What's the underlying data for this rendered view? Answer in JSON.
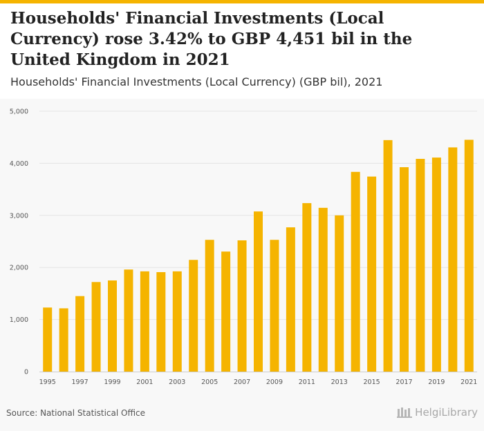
{
  "header": {
    "title": "Households' Financial Investments (Local Currency) rose 3.42% to GBP 4,451 bil in the United Kingdom in 2021",
    "subtitle": "Households' Financial Investments (Local Currency) (GBP bil), 2021"
  },
  "footer": {
    "source": "Source: National Statistical Office",
    "brand": "HelgiLibrary",
    "brand_icon": "building-columns-icon"
  },
  "colors": {
    "bar": "#f5b400",
    "accent": "#f5b400",
    "grid": "#e4e4e4",
    "axis_text": "#555555"
  },
  "chart_data": {
    "type": "bar",
    "title": "Households' Financial Investments (Local Currency) (GBP bil), 2021",
    "xlabel": "",
    "ylabel": "",
    "ylim": [
      0,
      5000
    ],
    "y_ticks": [
      0,
      1000,
      2000,
      3000,
      4000,
      5000
    ],
    "y_tick_labels": [
      "0",
      "1,000",
      "2,000",
      "3,000",
      "4,000",
      "5,000"
    ],
    "grid": true,
    "categories": [
      "1995",
      "1996",
      "1997",
      "1998",
      "1999",
      "2000",
      "2001",
      "2002",
      "2003",
      "2004",
      "2005",
      "2006",
      "2007",
      "2008",
      "2009",
      "2010",
      "2011",
      "2012",
      "2013",
      "2014",
      "2015",
      "2016",
      "2017",
      "2018",
      "2019",
      "2020",
      "2021"
    ],
    "x_tick_labels": [
      "1995",
      "",
      "1997",
      "",
      "1999",
      "",
      "2001",
      "",
      "2003",
      "",
      "2005",
      "",
      "2007",
      "",
      "2009",
      "",
      "2011",
      "",
      "2013",
      "",
      "2015",
      "",
      "2017",
      "",
      "2019",
      "",
      "2021"
    ],
    "values": [
      1230,
      1215,
      1450,
      1720,
      1750,
      1960,
      1925,
      1910,
      1925,
      2145,
      2530,
      2305,
      2520,
      3075,
      2530,
      2770,
      3235,
      3145,
      3000,
      3835,
      3745,
      4445,
      3925,
      4085,
      4110,
      4305,
      4451
    ]
  }
}
